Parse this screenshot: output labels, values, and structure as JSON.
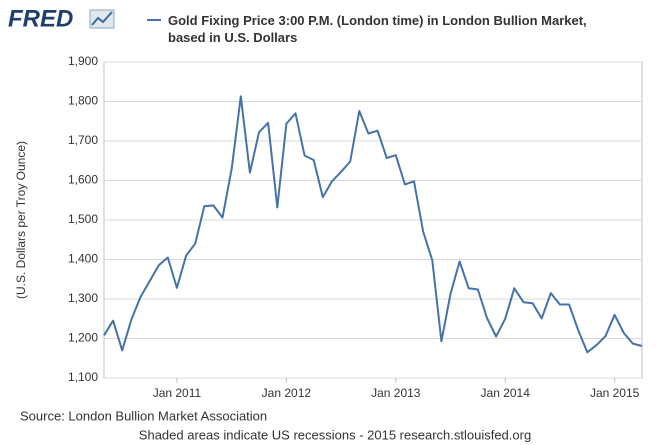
{
  "chart_data": {
    "type": "line",
    "logo": "FRED",
    "y_label": "(U.S. Dollars per Troy Ounce)",
    "source": "Source: London Bullion Market Association",
    "footer": "Shaded areas indicate US recessions - 2015 research.stlouisfed.org",
    "x": [
      "2010-05",
      "2010-06",
      "2010-07",
      "2010-08",
      "2010-09",
      "2010-10",
      "2010-11",
      "2010-12",
      "2011-01",
      "2011-02",
      "2011-03",
      "2011-04",
      "2011-05",
      "2011-06",
      "2011-07",
      "2011-08",
      "2011-09",
      "2011-10",
      "2011-11",
      "2011-12",
      "2012-01",
      "2012-02",
      "2012-03",
      "2012-04",
      "2012-05",
      "2012-06",
      "2012-07",
      "2012-08",
      "2012-09",
      "2012-10",
      "2012-11",
      "2012-12",
      "2013-01",
      "2013-02",
      "2013-03",
      "2013-04",
      "2013-05",
      "2013-06",
      "2013-07",
      "2013-08",
      "2013-09",
      "2013-10",
      "2013-11",
      "2013-12",
      "2014-01",
      "2014-02",
      "2014-03",
      "2014-04",
      "2014-05",
      "2014-06",
      "2014-07",
      "2014-08",
      "2014-09",
      "2014-10",
      "2014-11",
      "2014-12",
      "2015-01",
      "2015-02",
      "2015-03",
      "2015-04"
    ],
    "series": [
      {
        "name": "Gold Fixing Price 3:00 P.M. (London time) in London Bullion Market, based in U.S. Dollars",
        "color": "#4572a7",
        "values": [
          1208,
          1245,
          1170,
          1248,
          1305,
          1345,
          1385,
          1405,
          1328,
          1410,
          1440,
          1535,
          1537,
          1506,
          1630,
          1813,
          1620,
          1722,
          1746,
          1532,
          1744,
          1770,
          1663,
          1652,
          1558,
          1598,
          1622,
          1648,
          1776,
          1719,
          1726,
          1657,
          1664,
          1590,
          1598,
          1470,
          1398,
          1193,
          1313,
          1395,
          1327,
          1324,
          1252,
          1205,
          1250,
          1327,
          1292,
          1289,
          1251,
          1315,
          1286,
          1286,
          1221,
          1165,
          1183,
          1206,
          1260,
          1214,
          1187,
          1181
        ]
      }
    ],
    "xlim": [
      "2010-05",
      "2015-04"
    ],
    "xticks": [
      {
        "value": "2011-01",
        "label": "Jan 2011"
      },
      {
        "value": "2012-01",
        "label": "Jan 2012"
      },
      {
        "value": "2013-01",
        "label": "Jan 2013"
      },
      {
        "value": "2014-01",
        "label": "Jan 2014"
      },
      {
        "value": "2015-01",
        "label": "Jan 2015"
      }
    ],
    "ylim": [
      1100,
      1900
    ],
    "yticks": [
      {
        "value": 1100,
        "label": "1,100"
      },
      {
        "value": 1200,
        "label": "1,200"
      },
      {
        "value": 1300,
        "label": "1,300"
      },
      {
        "value": 1400,
        "label": "1,400"
      },
      {
        "value": 1500,
        "label": "1,500"
      },
      {
        "value": 1600,
        "label": "1,600"
      },
      {
        "value": 1700,
        "label": "1,700"
      },
      {
        "value": 1800,
        "label": "1,800"
      },
      {
        "value": 1900,
        "label": "1,900"
      }
    ],
    "grid": true
  }
}
